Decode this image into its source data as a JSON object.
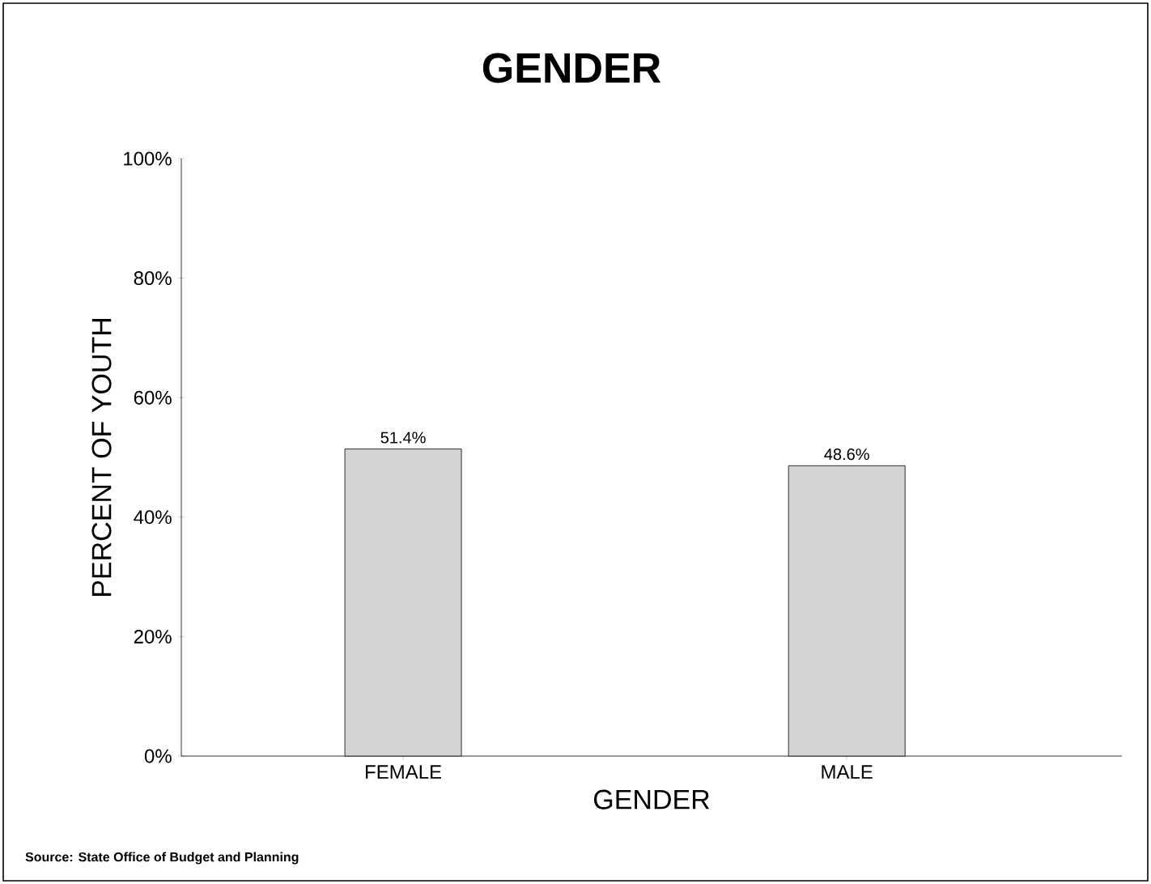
{
  "chart_data": {
    "type": "bar",
    "title": "GENDER",
    "xlabel": "GENDER",
    "ylabel": "PERCENT OF YOUTH",
    "categories": [
      "FEMALE",
      "MALE"
    ],
    "values": [
      51.4,
      48.6
    ],
    "value_labels": [
      "51.4%",
      "48.6%"
    ],
    "color": "#d4d4d4",
    "ylim": [
      0,
      100
    ],
    "yticks": [
      {
        "value": 0,
        "label": "0%"
      },
      {
        "value": 20,
        "label": "20%"
      },
      {
        "value": 40,
        "label": "40%"
      },
      {
        "value": 60,
        "label": "60%"
      },
      {
        "value": 80,
        "label": "80%"
      },
      {
        "value": 100,
        "label": "100%"
      }
    ],
    "annotations": [
      "Source: State Office of Budget and Planning"
    ]
  }
}
